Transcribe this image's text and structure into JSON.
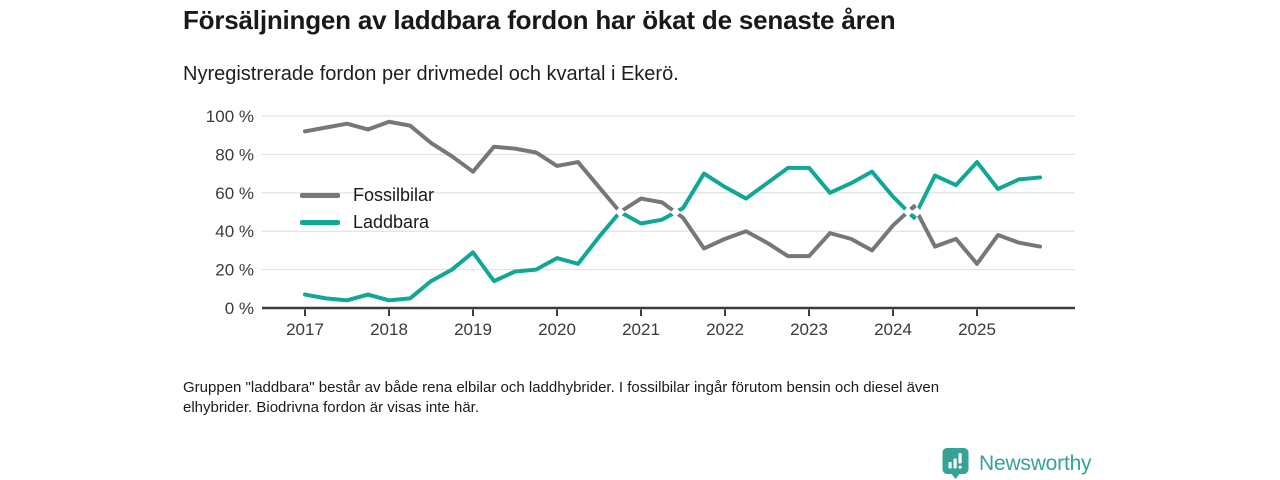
{
  "header": {
    "title": "Försäljningen av laddbara fordon har ökat de senaste åren",
    "subtitle": "Nyregistrerade fordon per drivmedel och kvartal i Ekerö."
  },
  "chart_data": {
    "type": "line",
    "title": "Försäljningen av laddbara fordon har ökat de senaste åren",
    "subtitle": "Nyregistrerade fordon per drivmedel och kvartal i Ekerö.",
    "x_axis": {
      "tick_labels": [
        "2017",
        "2018",
        "2019",
        "2020",
        "2021",
        "2022",
        "2023",
        "2024",
        "2025"
      ],
      "points_per_year": 4,
      "start": "2017 Q1",
      "end": "2025 Q4"
    },
    "y_axis": {
      "tick_labels": [
        "0 %",
        "20 %",
        "40 %",
        "60 %",
        "80 %",
        "100 %"
      ],
      "tick_values": [
        0,
        20,
        40,
        60,
        80,
        100
      ],
      "min": 0,
      "max": 100,
      "unit": "%"
    },
    "grid": "horizontal",
    "legend_position": "inside-top-left",
    "series": [
      {
        "name": "Fossilbilar",
        "color": "#75787a",
        "values": [
          92,
          94,
          96,
          93,
          97,
          95,
          86,
          79,
          71,
          84,
          83,
          81,
          74,
          76,
          63,
          50,
          57,
          55,
          47,
          31,
          36,
          40,
          34,
          27,
          27,
          39,
          36,
          30,
          43,
          53,
          32,
          36,
          23,
          38,
          34,
          32
        ]
      },
      {
        "name": "Laddbara",
        "color": "#10a796",
        "values": [
          7,
          5,
          4,
          7,
          4,
          5,
          14,
          20,
          29,
          14,
          19,
          20,
          26,
          23,
          37,
          50,
          44,
          46,
          52,
          70,
          63,
          57,
          65,
          73,
          73,
          60,
          65,
          71,
          58,
          47,
          69,
          64,
          76,
          62,
          67,
          68
        ]
      }
    ],
    "crossing_markers": {
      "shape": "diamond",
      "fill": "#ffffff"
    }
  },
  "footer": {
    "note_lines": [
      "Gruppen \"laddbara\" består av både rena elbilar och laddhybrider. I fossilbilar ingår förutom bensin och diesel även",
      "elhybrider. Biodrivna fordon är visas inte här."
    ],
    "brand": "Newsworthy",
    "brand_color": "#36a295"
  }
}
